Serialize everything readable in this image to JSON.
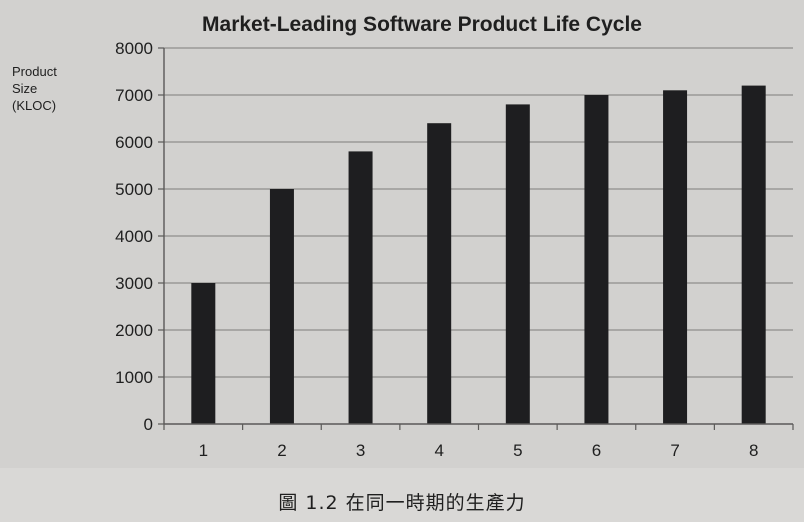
{
  "chart_data": {
    "type": "bar",
    "title": "Market-Leading Software Product Life Cycle",
    "ylabel_lines": [
      "Product",
      "Size",
      "(KLOC)"
    ],
    "xlabel": "",
    "categories": [
      "1",
      "2",
      "3",
      "4",
      "5",
      "6",
      "7",
      "8"
    ],
    "values": [
      3000,
      5000,
      5800,
      6400,
      6800,
      7000,
      7100,
      7200
    ],
    "ylim": [
      0,
      8000
    ],
    "yticks": [
      0,
      1000,
      2000,
      3000,
      4000,
      5000,
      6000,
      7000,
      8000
    ],
    "grid": true,
    "legend": "none",
    "colors": {
      "bar": "#1e1e20",
      "grid": "#8f8e8c",
      "axis": "#5a5958",
      "text": "#1f1f1f"
    }
  },
  "caption": "圖 1.2 在同一時期的生產力"
}
